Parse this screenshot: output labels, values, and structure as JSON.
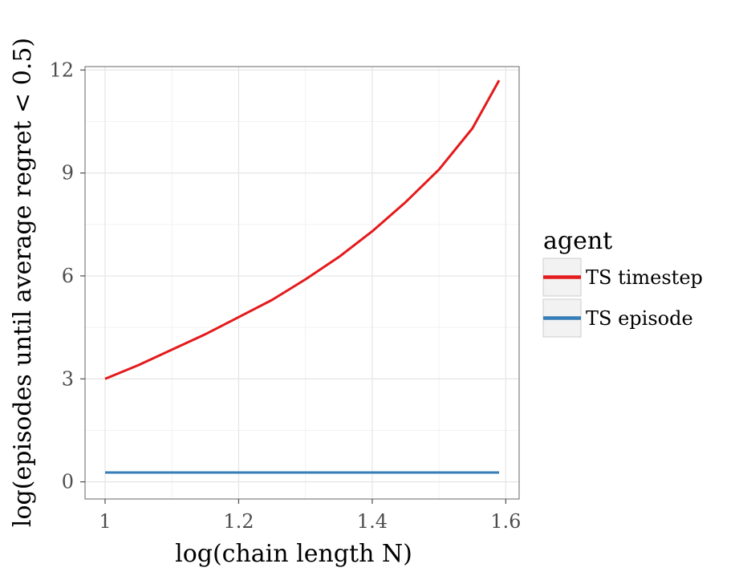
{
  "chart_data": {
    "type": "line",
    "xlabel": "log(chain length N)",
    "ylabel": "log(episodes until average regret < 0.5)",
    "xlim": [
      0.97,
      1.62
    ],
    "ylim": [
      -0.5,
      12.1
    ],
    "x_ticks": [
      1.0,
      1.2,
      1.4,
      1.6
    ],
    "x_tick_labels": [
      "1",
      "1.2",
      "1.4",
      "1.6"
    ],
    "y_ticks": [
      0,
      3,
      6,
      9,
      12
    ],
    "y_tick_labels": [
      "0",
      "3",
      "6",
      "9",
      "12"
    ],
    "grid": true,
    "legend": {
      "title": "agent",
      "position": "right"
    },
    "series": [
      {
        "name": "TS timestep",
        "color": "#e41a1c",
        "x": [
          1.0,
          1.05,
          1.1,
          1.15,
          1.2,
          1.25,
          1.3,
          1.35,
          1.4,
          1.45,
          1.5,
          1.55,
          1.59
        ],
        "y": [
          3.0,
          3.4,
          3.85,
          4.3,
          4.8,
          5.3,
          5.9,
          6.55,
          7.3,
          8.15,
          9.1,
          10.3,
          11.7
        ]
      },
      {
        "name": "TS episode",
        "color": "#377eb8",
        "x": [
          1.0,
          1.59
        ],
        "y": [
          0.27,
          0.27
        ]
      }
    ]
  }
}
